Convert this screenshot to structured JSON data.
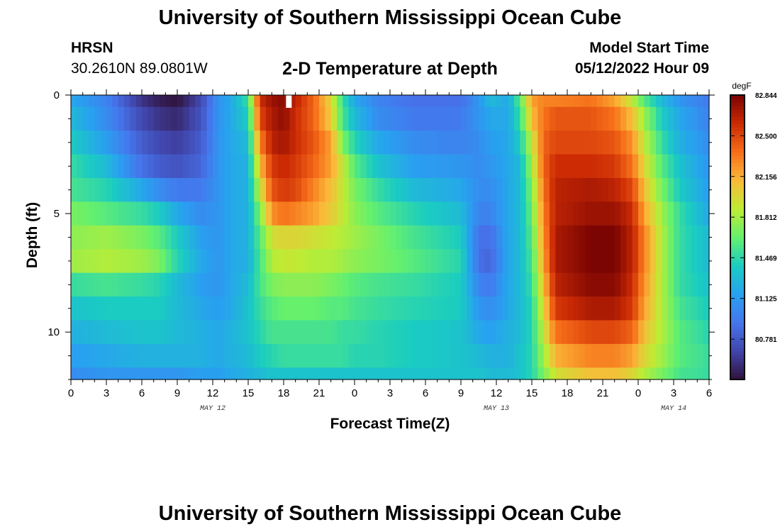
{
  "header": {
    "title": "University of Southern Mississippi Ocean Cube",
    "station": "HRSN",
    "coords": "30.2610N  89.0801W",
    "subtitle": "2-D Temperature at Depth",
    "start_label": "Model Start Time",
    "start_value": "05/12/2022 Hour 09"
  },
  "footer": {
    "title": "University of Southern Mississippi Ocean Cube"
  },
  "chart_data": {
    "type": "heatmap",
    "title": "2-D Temperature at Depth",
    "xlabel": "Forecast Time(Z)",
    "ylabel": "Depth (ft)",
    "x_range_hours": [
      0,
      54
    ],
    "x_tick_labels": [
      "0",
      "3",
      "6",
      "9",
      "12",
      "15",
      "18",
      "21",
      "0",
      "3",
      "6",
      "9",
      "12",
      "15",
      "18",
      "21",
      "0",
      "3",
      "6"
    ],
    "date_labels": [
      {
        "hour": 12,
        "text": "MAY 12"
      },
      {
        "hour": 36,
        "text": "MAY 13"
      },
      {
        "hour": 51,
        "text": "MAY 14"
      }
    ],
    "y_range_ft": [
      0,
      12
    ],
    "y_tick_labels": [
      "0",
      "5",
      "10"
    ],
    "y_tick_values": [
      0,
      5,
      10
    ],
    "colorbar": {
      "unit": "degF",
      "min": 80.44,
      "max": 82.844,
      "ticks": [
        "82.844",
        "82.500",
        "82.156",
        "81.812",
        "81.469",
        "81.125",
        "80.781"
      ],
      "tick_values": [
        82.844,
        82.5,
        82.156,
        81.812,
        81.469,
        81.125,
        80.781
      ]
    },
    "depth_levels_ft": [
      0.25,
      1.25,
      2.25,
      3.25,
      4.25,
      5.25,
      6.25,
      7.25,
      8.25,
      9.25,
      10.25,
      11.25,
      11.75
    ],
    "time_knots_hours": [
      0,
      3,
      6,
      7.5,
      9,
      11,
      12.5,
      13.5,
      15,
      16,
      17,
      18,
      19,
      20.5,
      22,
      23,
      24,
      26,
      29,
      33,
      34.5,
      35.5,
      37,
      38,
      39,
      40,
      41,
      44,
      46,
      47.5,
      48.5,
      50,
      51.5,
      54
    ],
    "temperature_degF": [
      [
        81.2,
        81.0,
        80.6,
        80.5,
        80.45,
        80.7,
        81.1,
        81.2,
        81.5,
        82.6,
        82.75,
        82.8,
        82.65,
        82.4,
        82.0,
        81.5,
        81.2,
        81.0,
        80.9,
        80.9,
        81.1,
        81.3,
        81.2,
        81.6,
        82.2,
        82.3,
        82.3,
        82.35,
        82.2,
        81.9,
        81.6,
        81.3,
        81.1,
        80.95
      ],
      [
        81.3,
        81.05,
        80.7,
        80.6,
        80.55,
        80.75,
        81.1,
        81.2,
        81.4,
        82.5,
        82.7,
        82.78,
        82.6,
        82.4,
        82.05,
        81.55,
        81.3,
        81.05,
        80.95,
        80.95,
        81.1,
        81.2,
        81.2,
        81.5,
        82.1,
        82.35,
        82.45,
        82.45,
        82.35,
        82.1,
        81.8,
        81.4,
        81.2,
        81.0
      ],
      [
        81.4,
        81.15,
        80.8,
        80.7,
        80.65,
        80.8,
        81.1,
        81.2,
        81.3,
        82.3,
        82.65,
        82.72,
        82.6,
        82.45,
        82.2,
        81.7,
        81.45,
        81.2,
        81.05,
        81.0,
        81.05,
        81.15,
        81.2,
        81.4,
        81.9,
        82.4,
        82.5,
        82.5,
        82.45,
        82.25,
        81.9,
        81.5,
        81.25,
        81.05
      ],
      [
        81.5,
        81.3,
        80.9,
        80.8,
        80.75,
        80.85,
        81.1,
        81.2,
        81.25,
        82.1,
        82.55,
        82.62,
        82.55,
        82.4,
        82.2,
        81.9,
        81.6,
        81.35,
        81.15,
        81.1,
        81.05,
        81.1,
        81.2,
        81.3,
        81.8,
        82.4,
        82.6,
        82.6,
        82.55,
        82.35,
        82.0,
        81.6,
        81.35,
        81.1
      ],
      [
        81.55,
        81.45,
        81.2,
        81.05,
        80.95,
        80.95,
        81.1,
        81.2,
        81.25,
        81.9,
        82.45,
        82.55,
        82.5,
        82.3,
        82.1,
        81.9,
        81.7,
        81.5,
        81.3,
        81.2,
        81.05,
        81.05,
        81.2,
        81.3,
        81.7,
        82.35,
        82.65,
        82.7,
        82.65,
        82.5,
        82.1,
        81.7,
        81.4,
        81.15
      ],
      [
        81.7,
        81.6,
        81.5,
        81.4,
        81.2,
        81.05,
        81.1,
        81.2,
        81.25,
        81.7,
        82.25,
        82.35,
        82.3,
        82.2,
        82.05,
        81.9,
        81.75,
        81.6,
        81.45,
        81.3,
        81.0,
        81.0,
        81.2,
        81.3,
        81.65,
        82.3,
        82.65,
        82.75,
        82.75,
        82.6,
        82.2,
        81.8,
        81.5,
        81.2
      ],
      [
        81.75,
        81.8,
        81.7,
        81.6,
        81.4,
        81.15,
        81.1,
        81.2,
        81.25,
        81.6,
        81.95,
        82.0,
        82.0,
        81.95,
        81.9,
        81.85,
        81.8,
        81.7,
        81.55,
        81.4,
        80.9,
        80.9,
        81.2,
        81.3,
        81.6,
        82.25,
        82.7,
        82.84,
        82.84,
        82.65,
        82.3,
        81.85,
        81.5,
        81.3
      ],
      [
        81.8,
        81.85,
        81.8,
        81.7,
        81.45,
        81.2,
        81.1,
        81.2,
        81.25,
        81.55,
        81.85,
        81.9,
        81.9,
        81.85,
        81.85,
        81.8,
        81.75,
        81.7,
        81.6,
        81.45,
        80.9,
        80.85,
        81.2,
        81.3,
        81.55,
        82.2,
        82.7,
        82.84,
        82.84,
        82.65,
        82.3,
        81.85,
        81.5,
        81.3
      ],
      [
        81.5,
        81.55,
        81.5,
        81.45,
        81.3,
        81.15,
        81.1,
        81.2,
        81.3,
        81.55,
        81.7,
        81.75,
        81.75,
        81.75,
        81.7,
        81.65,
        81.6,
        81.55,
        81.5,
        81.4,
        81.0,
        80.95,
        81.2,
        81.3,
        81.5,
        82.1,
        82.65,
        82.8,
        82.8,
        82.6,
        82.25,
        81.85,
        81.5,
        81.35
      ],
      [
        81.35,
        81.4,
        81.4,
        81.4,
        81.3,
        81.2,
        81.15,
        81.2,
        81.35,
        81.5,
        81.6,
        81.65,
        81.65,
        81.65,
        81.6,
        81.6,
        81.55,
        81.5,
        81.45,
        81.4,
        81.1,
        81.05,
        81.2,
        81.3,
        81.45,
        82.0,
        82.55,
        82.7,
        82.7,
        82.55,
        82.2,
        81.85,
        81.55,
        81.4
      ],
      [
        81.25,
        81.3,
        81.35,
        81.35,
        81.3,
        81.25,
        81.2,
        81.25,
        81.35,
        81.45,
        81.55,
        81.55,
        81.55,
        81.55,
        81.55,
        81.5,
        81.5,
        81.45,
        81.4,
        81.35,
        81.2,
        81.15,
        81.25,
        81.3,
        81.45,
        81.9,
        82.35,
        82.5,
        82.5,
        82.4,
        82.1,
        81.85,
        81.6,
        81.45
      ],
      [
        81.15,
        81.2,
        81.25,
        81.25,
        81.25,
        81.25,
        81.2,
        81.25,
        81.3,
        81.4,
        81.45,
        81.5,
        81.5,
        81.5,
        81.5,
        81.5,
        81.45,
        81.45,
        81.4,
        81.35,
        81.3,
        81.25,
        81.25,
        81.35,
        81.45,
        81.8,
        82.15,
        82.3,
        82.3,
        82.2,
        82.0,
        81.8,
        81.6,
        81.5
      ],
      [
        81.05,
        81.1,
        81.1,
        81.1,
        81.1,
        81.15,
        81.15,
        81.2,
        81.25,
        81.3,
        81.35,
        81.35,
        81.35,
        81.35,
        81.35,
        81.35,
        81.35,
        81.35,
        81.35,
        81.35,
        81.35,
        81.3,
        81.3,
        81.35,
        81.45,
        81.7,
        81.95,
        82.1,
        82.1,
        82.0,
        81.85,
        81.7,
        81.55,
        81.5
      ]
    ],
    "grid": false
  }
}
